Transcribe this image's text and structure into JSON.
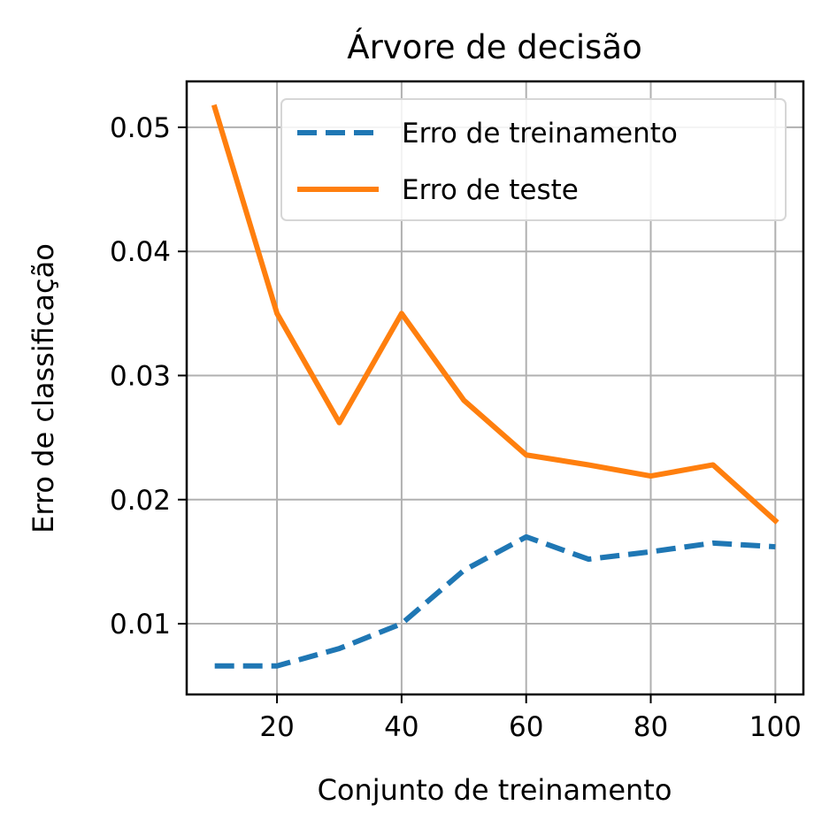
{
  "chart_data": {
    "type": "line",
    "title": "Árvore de decisão",
    "xlabel": "Conjunto de treinamento",
    "ylabel": "Erro de classificação",
    "xlim": [
      5.5,
      104.5
    ],
    "ylim": [
      0.0043,
      0.0537
    ],
    "x_ticks": [
      20,
      40,
      60,
      80,
      100
    ],
    "x_tick_labels": [
      "20",
      "40",
      "60",
      "80",
      "100"
    ],
    "y_ticks": [
      0.01,
      0.02,
      0.03,
      0.04,
      0.05
    ],
    "y_tick_labels": [
      "0.01",
      "0.02",
      "0.03",
      "0.04",
      "0.05"
    ],
    "grid": true,
    "legend_position": "top-right",
    "x": [
      10,
      20,
      30,
      40,
      50,
      60,
      70,
      80,
      90,
      100
    ],
    "series": [
      {
        "name": "Erro de treinamento",
        "color": "#1f77b4",
        "style": "dashed",
        "values": [
          0.0066,
          0.0066,
          0.008,
          0.01,
          0.0143,
          0.017,
          0.0152,
          0.0158,
          0.0165,
          0.0162
        ]
      },
      {
        "name": "Erro de teste",
        "color": "#ff7f0e",
        "style": "solid",
        "values": [
          0.0516,
          0.035,
          0.0262,
          0.035,
          0.028,
          0.0236,
          0.0228,
          0.0219,
          0.0228,
          0.0183
        ]
      }
    ]
  }
}
